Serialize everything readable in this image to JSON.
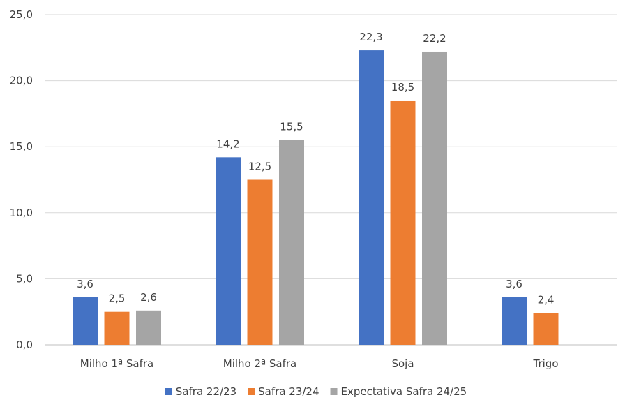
{
  "chart_data": {
    "type": "bar",
    "categories": [
      "Milho 1ª Safra",
      "Milho 2ª Safra",
      "Soja",
      "Trigo"
    ],
    "series": [
      {
        "name": "Safra 22/23",
        "color": "#4472C4",
        "values": [
          3.6,
          14.2,
          22.3,
          3.6
        ]
      },
      {
        "name": "Safra 23/24",
        "color": "#ED7D31",
        "values": [
          2.5,
          12.5,
          18.5,
          2.4
        ]
      },
      {
        "name": "Expectativa Safra 24/25",
        "color": "#A5A5A5",
        "values": [
          2.6,
          15.5,
          22.2,
          null
        ]
      }
    ],
    "data_labels": [
      [
        "3,6",
        "14,2",
        "22,3",
        "3,6"
      ],
      [
        "2,5",
        "12,5",
        "18,5",
        "2,4"
      ],
      [
        "2,6",
        "15,5",
        "22,2",
        null
      ]
    ],
    "y_ticks": [
      "0,0",
      "5,0",
      "10,0",
      "15,0",
      "20,0",
      "25,0"
    ],
    "ylim": [
      0,
      25
    ],
    "ytick_step": 5,
    "title": "",
    "xlabel": "",
    "ylabel": "",
    "grid": true,
    "gridline_color": "#D9D9D9",
    "axis_color": "#BFBFBF",
    "legend_position": "bottom"
  }
}
